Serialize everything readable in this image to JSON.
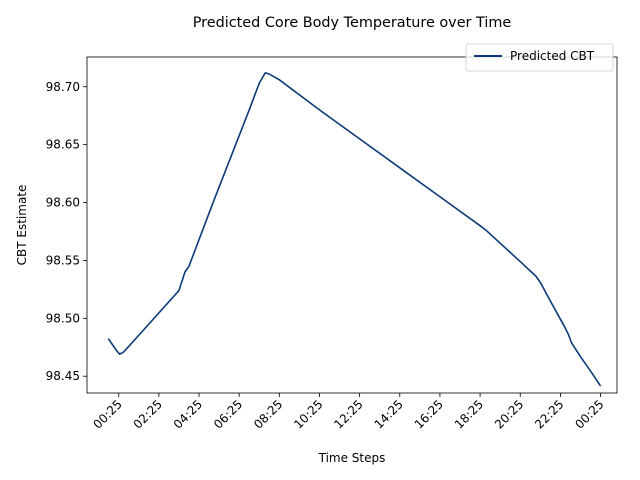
{
  "chart_data": {
    "type": "line",
    "title": "Predicted Core Body Temperature over Time",
    "xlabel": "Time Steps",
    "ylabel": "CBT Estimate",
    "x_tick_labels": [
      "00:25",
      "02:25",
      "04:25",
      "06:25",
      "08:25",
      "10:25",
      "12:25",
      "14:25",
      "16:25",
      "18:25",
      "20:25",
      "22:25",
      "00:25"
    ],
    "x_tick_hours": [
      0,
      2,
      4,
      6,
      8,
      10,
      12,
      14,
      16,
      18,
      20,
      22,
      24
    ],
    "xlim_hours": [
      -1.58,
      24.82
    ],
    "y_ticks": [
      98.45,
      98.5,
      98.55,
      98.6,
      98.65,
      98.7
    ],
    "y_tick_labels": [
      "98.45",
      "98.50",
      "98.55",
      "98.60",
      "98.65",
      "98.70"
    ],
    "ylim": [
      98.4355,
      98.7257
    ],
    "grid": false,
    "legend_position": "top-right",
    "series": [
      {
        "name": "Predicted CBT",
        "color": "#0b3a78",
        "points": [
          {
            "hour": -0.5,
            "value": 98.482
          },
          {
            "hour": -0.1,
            "value": 98.472
          },
          {
            "hour": 0.05,
            "value": 98.469
          },
          {
            "hour": 0.25,
            "value": 98.471
          },
          {
            "hour": 1.5,
            "value": 98.495
          },
          {
            "hour": 3.0,
            "value": 98.524
          },
          {
            "hour": 3.3,
            "value": 98.54
          },
          {
            "hour": 3.5,
            "value": 98.545
          },
          {
            "hour": 4.7,
            "value": 98.6
          },
          {
            "hour": 6.5,
            "value": 98.68
          },
          {
            "hour": 7.0,
            "value": 98.703
          },
          {
            "hour": 7.3,
            "value": 98.712
          },
          {
            "hour": 7.5,
            "value": 98.711
          },
          {
            "hour": 8.0,
            "value": 98.706
          },
          {
            "hour": 10.0,
            "value": 98.68
          },
          {
            "hour": 12.0,
            "value": 98.655
          },
          {
            "hour": 14.0,
            "value": 98.63
          },
          {
            "hour": 16.0,
            "value": 98.605
          },
          {
            "hour": 18.0,
            "value": 98.58
          },
          {
            "hour": 18.3,
            "value": 98.576
          },
          {
            "hour": 20.0,
            "value": 98.549
          },
          {
            "hour": 20.8,
            "value": 98.536
          },
          {
            "hour": 21.0,
            "value": 98.531
          },
          {
            "hour": 21.5,
            "value": 98.515
          },
          {
            "hour": 22.2,
            "value": 98.493
          },
          {
            "hour": 22.4,
            "value": 98.486
          },
          {
            "hour": 22.55,
            "value": 98.479
          },
          {
            "hour": 23.0,
            "value": 98.467
          },
          {
            "hour": 23.6,
            "value": 98.452
          },
          {
            "hour": 23.98,
            "value": 98.442
          }
        ]
      }
    ]
  }
}
